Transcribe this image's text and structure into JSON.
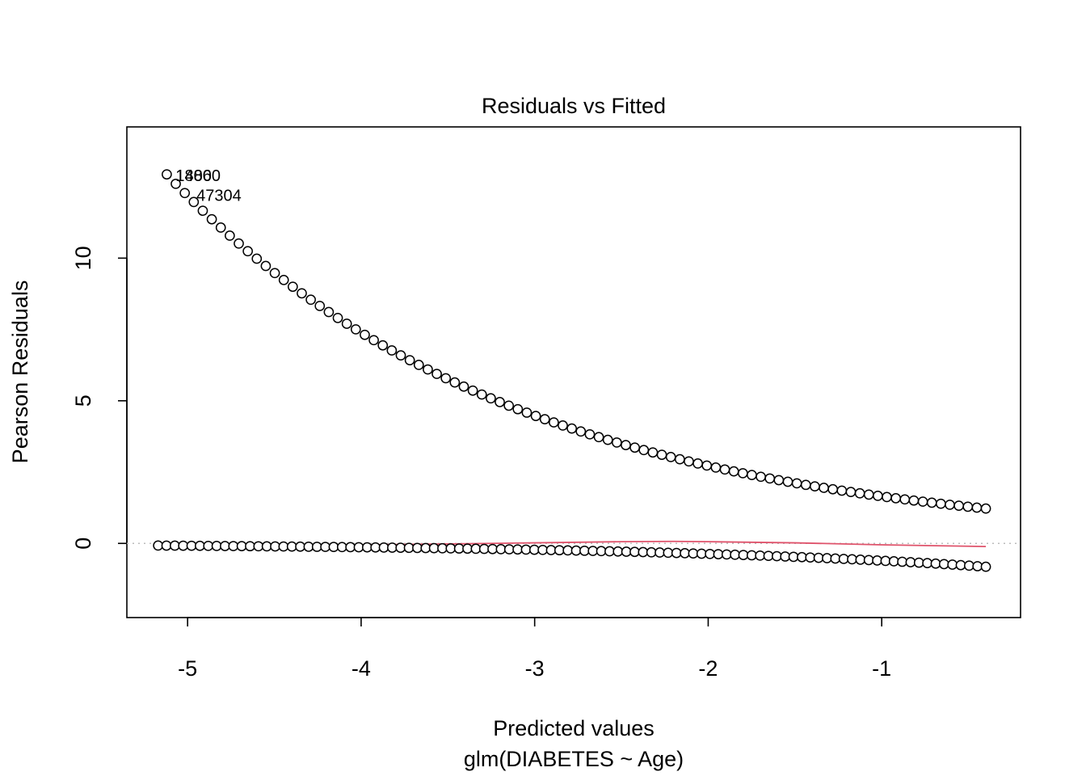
{
  "chart_data": {
    "type": "scatter",
    "title": "Residuals vs Fitted",
    "xlabel": "Predicted values",
    "xlabel2": "glm(DIABETES ~ Age)",
    "ylabel": "Pearson Residuals",
    "xlim": [
      -5.35,
      -0.2
    ],
    "ylim": [
      -2.6,
      14.6
    ],
    "x_ticks": [
      -5,
      -4,
      -3,
      -2,
      -1
    ],
    "y_ticks": [
      0,
      5,
      10
    ],
    "reference_line": {
      "y": 0,
      "style": "dotted",
      "color": "#bbbbbb"
    },
    "series": [
      {
        "role": "upper-residuals",
        "x_range": [
          -5.12,
          -0.4
        ],
        "y_endpoints": [
          12.9,
          1.2
        ],
        "count": 92,
        "model": "exp(-x/2)"
      },
      {
        "role": "lower-residuals",
        "x_range": [
          -5.17,
          -0.4
        ],
        "y_endpoints": [
          -0.075,
          -0.82
        ],
        "count": 100,
        "model": "-exp(x/2)"
      }
    ],
    "smooth_line": {
      "color": "#df536b",
      "points": [
        [
          -5.17,
          -0.1
        ],
        [
          -4.5,
          -0.07
        ],
        [
          -4.0,
          -0.05
        ],
        [
          -3.5,
          -0.02
        ],
        [
          -3.0,
          0.02
        ],
        [
          -2.5,
          0.06
        ],
        [
          -2.2,
          0.07
        ],
        [
          -2.0,
          0.06
        ],
        [
          -1.5,
          0.02
        ],
        [
          -1.0,
          -0.05
        ],
        [
          -0.5,
          -0.1
        ],
        [
          -0.4,
          -0.11
        ]
      ]
    },
    "annotations": [
      {
        "label": "18800",
        "x": -5.12,
        "y": 12.9
      },
      {
        "label": "1406",
        "x": -5.12,
        "y": 12.9
      },
      {
        "label": "47304",
        "x": -5.0,
        "y": 12.2
      }
    ]
  }
}
